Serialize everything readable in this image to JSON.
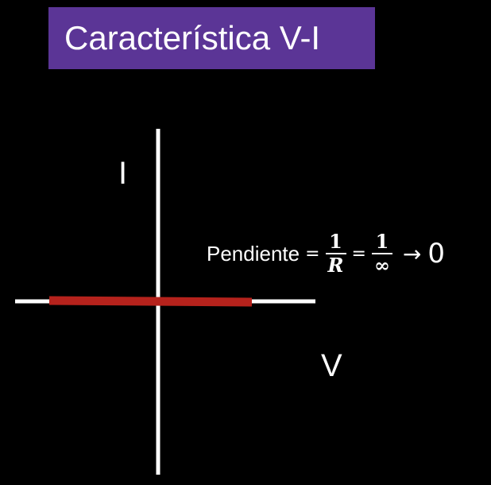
{
  "title": "Característica V-I",
  "axes": {
    "y_label": "I",
    "x_label": "V"
  },
  "equation": {
    "word": "Pendiente",
    "equals": "=",
    "fraction1_numerator": "1",
    "fraction1_denominator": "R",
    "fraction2_numerator": "1",
    "fraction2_denominator": "∞",
    "arrow": "→",
    "limit": "0"
  },
  "colors": {
    "banner": "#5b3596",
    "background": "#000000",
    "axes": "#ffffff",
    "characteristic_line": "#b5221c"
  }
}
